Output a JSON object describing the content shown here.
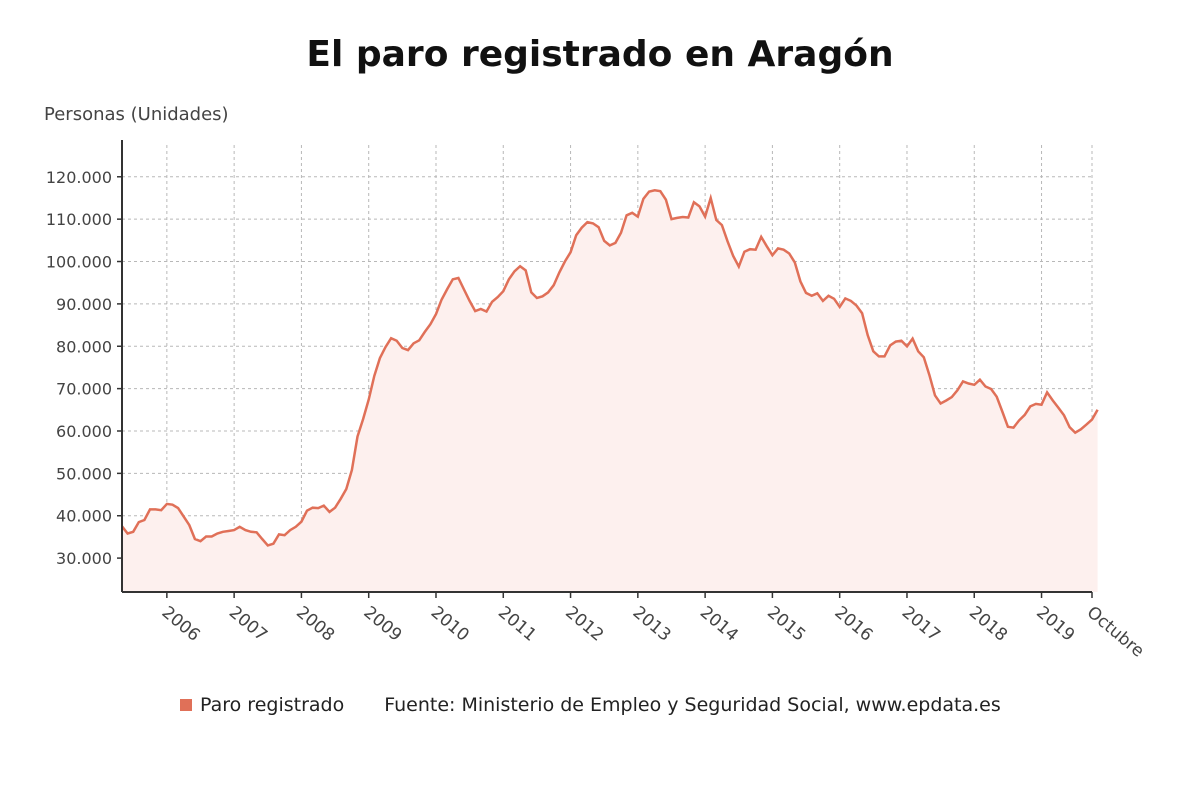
{
  "chart_data": {
    "type": "area",
    "title": "El paro registrado en Aragón",
    "ylabel": "Personas (Unidades)",
    "xlabel": "",
    "ylim": [
      20000,
      130000
    ],
    "yticks": [
      30000,
      40000,
      50000,
      60000,
      70000,
      80000,
      90000,
      100000,
      110000,
      120000
    ],
    "ytick_labels": [
      "30.000",
      "40.000",
      "50.000",
      "60.000",
      "70.000",
      "80.000",
      "90.000",
      "100.000",
      "110.000",
      "120.000"
    ],
    "xrange": [
      "2005-05",
      "2019-10"
    ],
    "xtick_labels": [
      "2006",
      "2007",
      "2008",
      "2009",
      "2010",
      "2011",
      "2012",
      "2013",
      "2014",
      "2015",
      "2016",
      "2017",
      "2018",
      "2019",
      "Octubre"
    ],
    "xtick_dates": [
      "2006-01",
      "2007-01",
      "2008-01",
      "2009-01",
      "2010-01",
      "2011-01",
      "2012-01",
      "2013-01",
      "2014-01",
      "2015-01",
      "2016-01",
      "2017-01",
      "2018-01",
      "2019-01",
      "2019-10"
    ],
    "grid": true,
    "legend_position": "bottom-left",
    "series": [
      {
        "name": "Paro registrado",
        "color": "#e07058",
        "values": [
          37500,
          35800,
          36200,
          38500,
          39000,
          41500,
          41500,
          41300,
          42800,
          42600,
          41800,
          39800,
          37800,
          34500,
          34000,
          35100,
          35100,
          35800,
          36200,
          36400,
          36600,
          37400,
          36600,
          36200,
          36100,
          34500,
          33000,
          33400,
          35600,
          35400,
          36600,
          37400,
          38600,
          41200,
          41900,
          41800,
          42400,
          40900,
          41900,
          44000,
          46300,
          50800,
          58700,
          62800,
          67400,
          73000,
          77200,
          79800,
          81900,
          81300,
          79600,
          79100,
          80700,
          81400,
          83400,
          85200,
          87600,
          91000,
          93500,
          95800,
          96100,
          93400,
          90700,
          88300,
          88800,
          88200,
          90500,
          91600,
          93000,
          95800,
          97700,
          98900,
          97900,
          92700,
          91400,
          91800,
          92700,
          94400,
          97400,
          100000,
          102200,
          106200,
          108000,
          109300,
          109000,
          108100,
          104900,
          103800,
          104400,
          106800,
          110900,
          111500,
          110600,
          114800,
          116500,
          116800,
          116600,
          114600,
          110000,
          110300,
          110500,
          110400,
          114000,
          113000,
          110600,
          115000,
          109800,
          108600,
          104800,
          101300,
          98800,
          102300,
          102900,
          102800,
          105800,
          103600,
          101500,
          103100,
          102800,
          101900,
          99800,
          95300,
          92600,
          91900,
          92500,
          90700,
          91900,
          91200,
          89300,
          91300,
          90700,
          89600,
          87800,
          82600,
          78800,
          77600,
          77600,
          80200,
          81100,
          81300,
          80000,
          81800,
          78800,
          77400,
          73200,
          68400,
          66500,
          67200,
          68000,
          69600,
          71700,
          71200,
          70900,
          72100,
          70500,
          69900,
          68100,
          64600,
          61000,
          60800,
          62500,
          63800,
          65800,
          66400,
          66200,
          69100,
          67200,
          65500,
          63700,
          60900,
          59600,
          60400,
          61500,
          62700,
          65000
        ]
      }
    ]
  },
  "legend": {
    "series_label": "Paro registrado",
    "source": "Fuente: Ministerio de Empleo y Seguridad Social, www.epdata.es"
  },
  "colors": {
    "line": "#e07058",
    "fill": "#fdf0ee",
    "grid": "#b8b8b8",
    "axis": "#333333"
  }
}
